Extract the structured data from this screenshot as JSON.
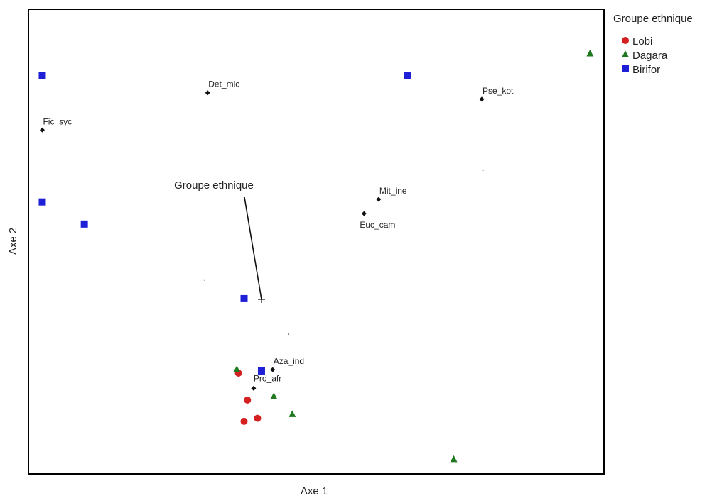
{
  "chart_data": {
    "type": "scatter",
    "title": "",
    "xlabel": "Axe 1",
    "ylabel": "Axe 2",
    "xlim": [
      0,
      100
    ],
    "ylim": [
      0,
      100
    ],
    "grid": false,
    "legend": {
      "title": "Groupe ethnique",
      "position": "top-right-outside",
      "entries": [
        {
          "name": "Lobi",
          "marker": "circle",
          "color": "#d42020"
        },
        {
          "name": "Dagara",
          "marker": "triangle",
          "color": "#1f7a1f"
        },
        {
          "name": "Birifor",
          "marker": "square",
          "color": "#1f1fd8"
        }
      ]
    },
    "series": [
      {
        "name": "Lobi",
        "marker": "circle",
        "color": "#d42020",
        "points": [
          [
            36.2,
            21.6
          ],
          [
            37.8,
            15.4
          ],
          [
            37.2,
            10.5
          ],
          [
            39.6,
            11.2
          ]
        ]
      },
      {
        "name": "Dagara",
        "marker": "triangle",
        "color": "#1f7a1f",
        "points": [
          [
            98.9,
            95.3
          ],
          [
            35.9,
            22.4
          ],
          [
            42.5,
            16.2
          ],
          [
            45.8,
            12.1
          ],
          [
            74.6,
            1.7
          ]
        ]
      },
      {
        "name": "Birifor",
        "marker": "square",
        "color": "#1f1fd8",
        "points": [
          [
            1.2,
            90.3
          ],
          [
            66.4,
            90.3
          ],
          [
            1.2,
            61.1
          ],
          [
            8.7,
            56.0
          ],
          [
            37.2,
            38.8
          ],
          [
            40.3,
            22.1
          ]
        ]
      }
    ],
    "species": [
      {
        "label": "Det_mic",
        "x": 30.7,
        "y": 86.3
      },
      {
        "label": "Pse_kot",
        "x": 79.6,
        "y": 84.8
      },
      {
        "label": "Fic_syc",
        "x": 1.2,
        "y": 77.7
      },
      {
        "label": "Mit_ine",
        "x": 61.2,
        "y": 61.7
      },
      {
        "label": "Euc_cam",
        "x": 58.6,
        "y": 58.4
      },
      {
        "label": "Aza_ind",
        "x": 42.3,
        "y": 22.4
      },
      {
        "label": "Pro_afr",
        "x": 38.9,
        "y": 18.1
      }
    ],
    "specks": [
      [
        79.8,
        68.4
      ],
      [
        30.1,
        43.1
      ],
      [
        45.1,
        30.6
      ]
    ],
    "vector": {
      "label": "Groupe ethnique",
      "from": [
        37.8,
        37.6
      ],
      "to": [
        37.5,
        37.9
      ]
    }
  }
}
